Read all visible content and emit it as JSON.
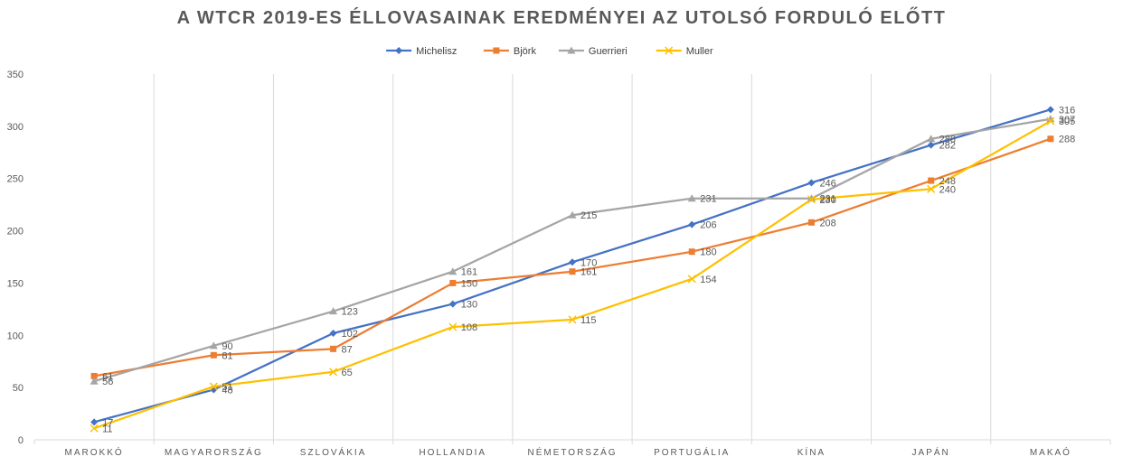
{
  "chart_data": {
    "type": "line",
    "title": "A WTCR 2019-ES ÉLLOVASAINAK EREDMÉNYEI AZ UTOLSÓ FORDULÓ ELŐTT",
    "categories": [
      "MAROKKÓ",
      "MAGYARORSZÁG",
      "SZLOVÁKIA",
      "HOLLANDIA",
      "NÉMETORSZÁG",
      "PORTUGÁLIA",
      "KÍNA",
      "JAPÁN",
      "MAKAÓ"
    ],
    "series": [
      {
        "name": "Michelisz",
        "color": "#4472C4",
        "marker": "diamond",
        "values": [
          17,
          48,
          102,
          130,
          170,
          206,
          246,
          282,
          316
        ]
      },
      {
        "name": "Björk",
        "color": "#ED7D31",
        "marker": "square",
        "values": [
          61,
          81,
          87,
          150,
          161,
          180,
          208,
          248,
          288
        ]
      },
      {
        "name": "Guerrieri",
        "color": "#A5A5A5",
        "marker": "triangle",
        "values": [
          56,
          90,
          123,
          161,
          215,
          231,
          231,
          288,
          307
        ]
      },
      {
        "name": "Muller",
        "color": "#FFC000",
        "marker": "x",
        "values": [
          11,
          51,
          65,
          108,
          115,
          154,
          230,
          240,
          305
        ]
      }
    ],
    "yticks": [
      0,
      50,
      100,
      150,
      200,
      250,
      300,
      350
    ],
    "ylim": [
      0,
      350
    ],
    "grid": "vertical category separators",
    "legend": "top-center"
  }
}
